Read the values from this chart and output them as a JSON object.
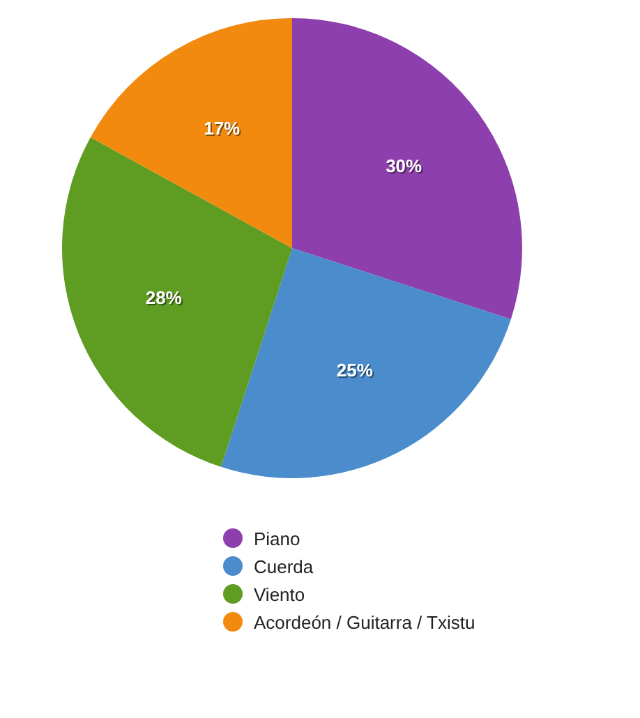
{
  "chart_data": {
    "type": "pie",
    "categories": [
      "Piano",
      "Cuerda",
      "Viento",
      "Acordeón / Guitarra / Txistu"
    ],
    "values": [
      30,
      25,
      28,
      17
    ],
    "colors": [
      "#8e3fae",
      "#4a8ccc",
      "#5e9c22",
      "#f18a0e"
    ],
    "value_labels": [
      "30%",
      "25%",
      "28%",
      "17%"
    ],
    "legend": "bottom"
  }
}
